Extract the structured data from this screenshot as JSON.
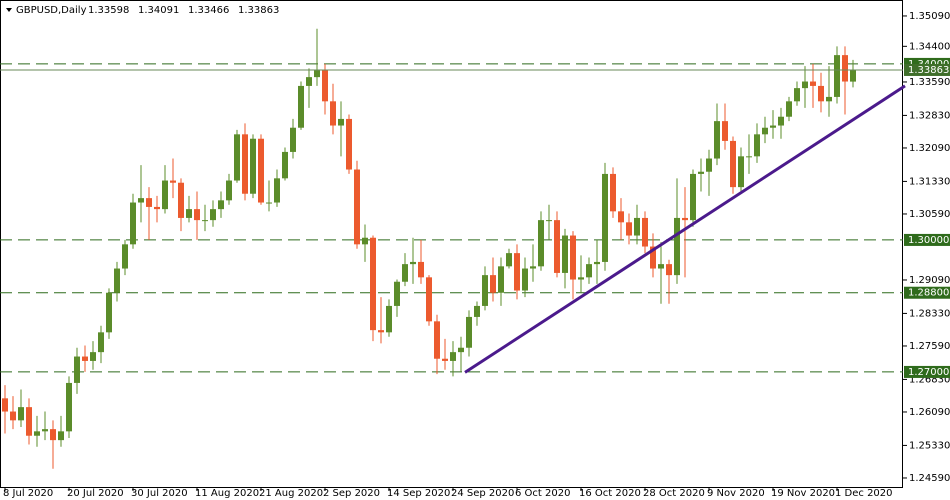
{
  "chart_data": {
    "type": "candlestick",
    "title": "GBPUSD,Daily",
    "categories": [
      "8 Jul 2020",
      null,
      null,
      null,
      null,
      null,
      null,
      null,
      "20 Jul 2020",
      null,
      null,
      null,
      null,
      null,
      null,
      null,
      "30 Jul 2020",
      null,
      null,
      null,
      null,
      null,
      null,
      null,
      "11 Aug 2020",
      null,
      null,
      null,
      null,
      null,
      null,
      null,
      "21 Aug 2020",
      null,
      null,
      null,
      null,
      null,
      null,
      null,
      "2 Sep 2020",
      null,
      null,
      null,
      null,
      null,
      null,
      null,
      "14 Sep 2020",
      null,
      null,
      null,
      null,
      null,
      null,
      null,
      "24 Sep 2020",
      null,
      null,
      null,
      null,
      null,
      null,
      null,
      "6 Oct 2020",
      null,
      null,
      null,
      null,
      null,
      null,
      null,
      "16 Oct 2020",
      null,
      null,
      null,
      null,
      null,
      null,
      null,
      "28 Oct 2020",
      null,
      null,
      null,
      null,
      null,
      null,
      null,
      "9 Nov 2020",
      null,
      null,
      null,
      null,
      null,
      null,
      null,
      "19 Nov 2020",
      null,
      null,
      null,
      null,
      null,
      null,
      null,
      "1 Dec 2020",
      null,
      null
    ],
    "open": [
      1.264,
      1.261,
      1.259,
      1.262,
      1.2555,
      1.2565,
      1.257,
      1.2545,
      1.2565,
      1.2675,
      1.2735,
      1.2725,
      1.2745,
      1.279,
      1.288,
      1.2935,
      1.299,
      1.3085,
      1.3095,
      1.3075,
      1.307,
      1.3135,
      1.313,
      1.305,
      1.307,
      1.3045,
      1.3045,
      1.307,
      1.309,
      1.3135,
      1.324,
      1.3105,
      1.323,
      1.3085,
      1.3085,
      1.314,
      1.32,
      1.3255,
      1.335,
      1.337,
      1.3385,
      1.3315,
      1.326,
      1.3275,
      1.316,
      1.299,
      1.3005,
      1.2795,
      1.279,
      1.285,
      1.2905,
      1.2945,
      1.295,
      1.2915,
      1.2815,
      1.273,
      1.2725,
      1.2745,
      1.2755,
      1.2825,
      1.285,
      1.292,
      1.288,
      1.294,
      1.297,
      1.2885,
      1.2935,
      1.294,
      1.3045,
      1.3045,
      1.2925,
      1.301,
      1.291,
      1.2915,
      1.2945,
      1.295,
      1.315,
      1.3065,
      1.304,
      1.301,
      1.305,
      1.2985,
      1.2935,
      1.2945,
      1.292,
      1.305,
      1.3045,
      1.315,
      1.3155,
      1.3185,
      1.327,
      1.3225,
      1.312,
      1.319,
      1.319,
      1.324,
      1.3255,
      1.326,
      1.328,
      1.3315,
      1.3345,
      1.336,
      1.335,
      1.3315,
      1.3325,
      1.342,
      1.33598
    ],
    "high": [
      1.267,
      1.2645,
      1.266,
      1.264,
      1.26,
      1.261,
      1.259,
      1.26,
      1.269,
      1.2755,
      1.276,
      1.277,
      1.2805,
      1.289,
      1.295,
      1.3,
      1.3105,
      1.317,
      1.312,
      1.31,
      1.317,
      1.3185,
      1.314,
      1.31,
      1.311,
      1.308,
      1.309,
      1.311,
      1.315,
      1.325,
      1.3265,
      1.324,
      1.324,
      1.3135,
      1.316,
      1.321,
      1.3275,
      1.336,
      1.339,
      1.348,
      1.34,
      1.3355,
      1.3315,
      1.3285,
      1.318,
      1.3035,
      1.301,
      1.287,
      1.2865,
      1.291,
      1.297,
      1.3005,
      1.3,
      1.292,
      1.283,
      1.2775,
      1.277,
      1.278,
      1.284,
      1.286,
      1.294,
      1.296,
      1.296,
      1.298,
      1.299,
      1.296,
      1.299,
      1.3065,
      1.308,
      1.3065,
      1.3025,
      1.302,
      1.2965,
      1.296,
      1.3,
      1.3175,
      1.3165,
      1.3095,
      1.306,
      1.308,
      1.3065,
      1.3015,
      1.2995,
      1.2955,
      1.314,
      1.312,
      1.316,
      1.3185,
      1.3205,
      1.331,
      1.331,
      1.3235,
      1.321,
      1.324,
      1.3265,
      1.328,
      1.3295,
      1.33,
      1.3325,
      1.336,
      1.3395,
      1.34,
      1.338,
      1.3395,
      1.344,
      1.344,
      1.34091
    ],
    "low": [
      1.256,
      1.257,
      1.2575,
      1.2535,
      1.253,
      1.2545,
      1.248,
      1.253,
      1.255,
      1.265,
      1.27,
      1.2705,
      1.272,
      1.2775,
      1.286,
      1.292,
      1.298,
      1.304,
      1.3,
      1.304,
      1.306,
      1.3095,
      1.302,
      1.304,
      1.3,
      1.302,
      1.303,
      1.305,
      1.308,
      1.313,
      1.309,
      1.3095,
      1.308,
      1.3065,
      1.3075,
      1.3135,
      1.3185,
      1.325,
      1.33,
      1.335,
      1.3285,
      1.324,
      1.319,
      1.315,
      1.298,
      1.295,
      1.277,
      1.2765,
      1.278,
      1.2825,
      1.2895,
      1.29,
      1.29,
      1.2805,
      1.2695,
      1.2705,
      1.269,
      1.27,
      1.2735,
      1.2805,
      1.284,
      1.286,
      1.285,
      1.2935,
      1.2865,
      1.287,
      1.2905,
      1.293,
      1.3,
      1.2915,
      1.289,
      1.2865,
      1.288,
      1.29,
      1.29,
      1.293,
      1.305,
      1.3,
      1.299,
      1.299,
      1.297,
      1.2915,
      1.2855,
      1.2855,
      1.29,
      1.2915,
      1.303,
      1.311,
      1.31,
      1.317,
      1.3205,
      1.3105,
      1.311,
      1.315,
      1.3175,
      1.322,
      1.323,
      1.323,
      1.327,
      1.3305,
      1.33,
      1.33,
      1.329,
      1.328,
      1.331,
      1.3285,
      1.33466
    ],
    "close": [
      1.261,
      1.259,
      1.262,
      1.2555,
      1.2565,
      1.257,
      1.2545,
      1.2565,
      1.2675,
      1.2735,
      1.2725,
      1.2745,
      1.279,
      1.288,
      1.2935,
      1.299,
      1.3085,
      1.3095,
      1.3075,
      1.307,
      1.3135,
      1.313,
      1.305,
      1.307,
      1.3045,
      1.3045,
      1.307,
      1.309,
      1.3135,
      1.324,
      1.3105,
      1.323,
      1.3085,
      1.3085,
      1.314,
      1.32,
      1.3255,
      1.335,
      1.337,
      1.3385,
      1.3315,
      1.326,
      1.3275,
      1.316,
      1.299,
      1.3005,
      1.2795,
      1.279,
      1.285,
      1.2905,
      1.2945,
      1.295,
      1.2915,
      1.2815,
      1.273,
      1.2725,
      1.2745,
      1.2755,
      1.2825,
      1.285,
      1.292,
      1.288,
      1.294,
      1.297,
      1.2885,
      1.2935,
      1.294,
      1.3045,
      1.3045,
      1.2925,
      1.301,
      1.291,
      1.2915,
      1.2945,
      1.295,
      1.315,
      1.3065,
      1.304,
      1.301,
      1.305,
      1.2985,
      1.2935,
      1.2945,
      1.292,
      1.305,
      1.3045,
      1.315,
      1.3155,
      1.3185,
      1.327,
      1.3225,
      1.312,
      1.319,
      1.319,
      1.324,
      1.3255,
      1.326,
      1.328,
      1.3315,
      1.3345,
      1.336,
      1.335,
      1.3315,
      1.3325,
      1.342,
      1.336,
      1.33863
    ],
    "up_color": "#5b8c2a",
    "down_color": "#ec5a2e",
    "ylim": [
      1.24385,
      1.3543
    ],
    "yticks": [
      {
        "value": 1.2459,
        "label": "1.24590"
      },
      {
        "value": 1.2533,
        "label": "1.25330"
      },
      {
        "value": 1.2609,
        "label": "1.26090"
      },
      {
        "value": 1.2683,
        "label": "1.26830"
      },
      {
        "value": 1.2759,
        "label": "1.27590"
      },
      {
        "value": 1.2833,
        "label": "1.28330"
      },
      {
        "value": 1.2909,
        "label": "1.29090"
      },
      {
        "value": 1.3059,
        "label": "1.30590"
      },
      {
        "value": 1.3133,
        "label": "1.31330"
      },
      {
        "value": 1.3209,
        "label": "1.32090"
      },
      {
        "value": 1.3283,
        "label": "1.32830"
      },
      {
        "value": 1.3359,
        "label": "1.33590"
      },
      {
        "value": 1.344,
        "label": "1.34400"
      },
      {
        "value": 1.3509,
        "label": "1.35090"
      }
    ],
    "levels": [
      {
        "value": 1.34,
        "label": "1.34000"
      },
      {
        "value": 1.3,
        "label": "1.30000"
      },
      {
        "value": 1.288,
        "label": "1.28800"
      },
      {
        "value": 1.27,
        "label": "1.27000"
      }
    ],
    "level_color": "#2f6b1c",
    "trendline": {
      "x": [
        57.5,
        112.5
      ],
      "y": [
        1.2699,
        1.335
      ],
      "color": "#4b1a8c"
    },
    "grid": false
  }
}
